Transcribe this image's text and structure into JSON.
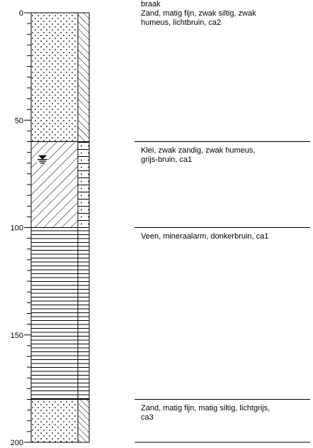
{
  "depth_axis": {
    "ticks": [
      0,
      50,
      100,
      150,
      200
    ],
    "min": 0,
    "max": 200,
    "minor_step": 5
  },
  "groundwater_symbol": {
    "depth": 68,
    "name": "groundwater-level-symbol"
  },
  "layers": [
    {
      "top": 0,
      "bottom": 60,
      "main_pattern": "dots",
      "side_pattern": "hatch-steep",
      "description": [
        "braak",
        "Zand, matig fijn, zwak siltig, zwak",
        "humeus, lichtbruin, ca2"
      ],
      "text_at": "top"
    },
    {
      "top": 60,
      "bottom": 100,
      "main_pattern": "hatch",
      "side_pattern": "dotted-cells",
      "description": [
        "Klei, zwak zandig, zwak humeus,",
        "grijs-bruin, ca1"
      ],
      "text_at": "boundary"
    },
    {
      "top": 100,
      "bottom": 180,
      "main_pattern": "horizontal-lines",
      "side_pattern": "horizontal-lines",
      "description": [
        "Veen, mineraalarm, donkerbruin, ca1"
      ],
      "text_at": "boundary"
    },
    {
      "top": 180,
      "bottom": 200,
      "main_pattern": "dots",
      "side_pattern": "hatch-diagonal",
      "description": [
        "Zand, matig fijn, matig siltig, lichtgrijs,",
        "ca3"
      ],
      "text_at": "boundary"
    }
  ]
}
